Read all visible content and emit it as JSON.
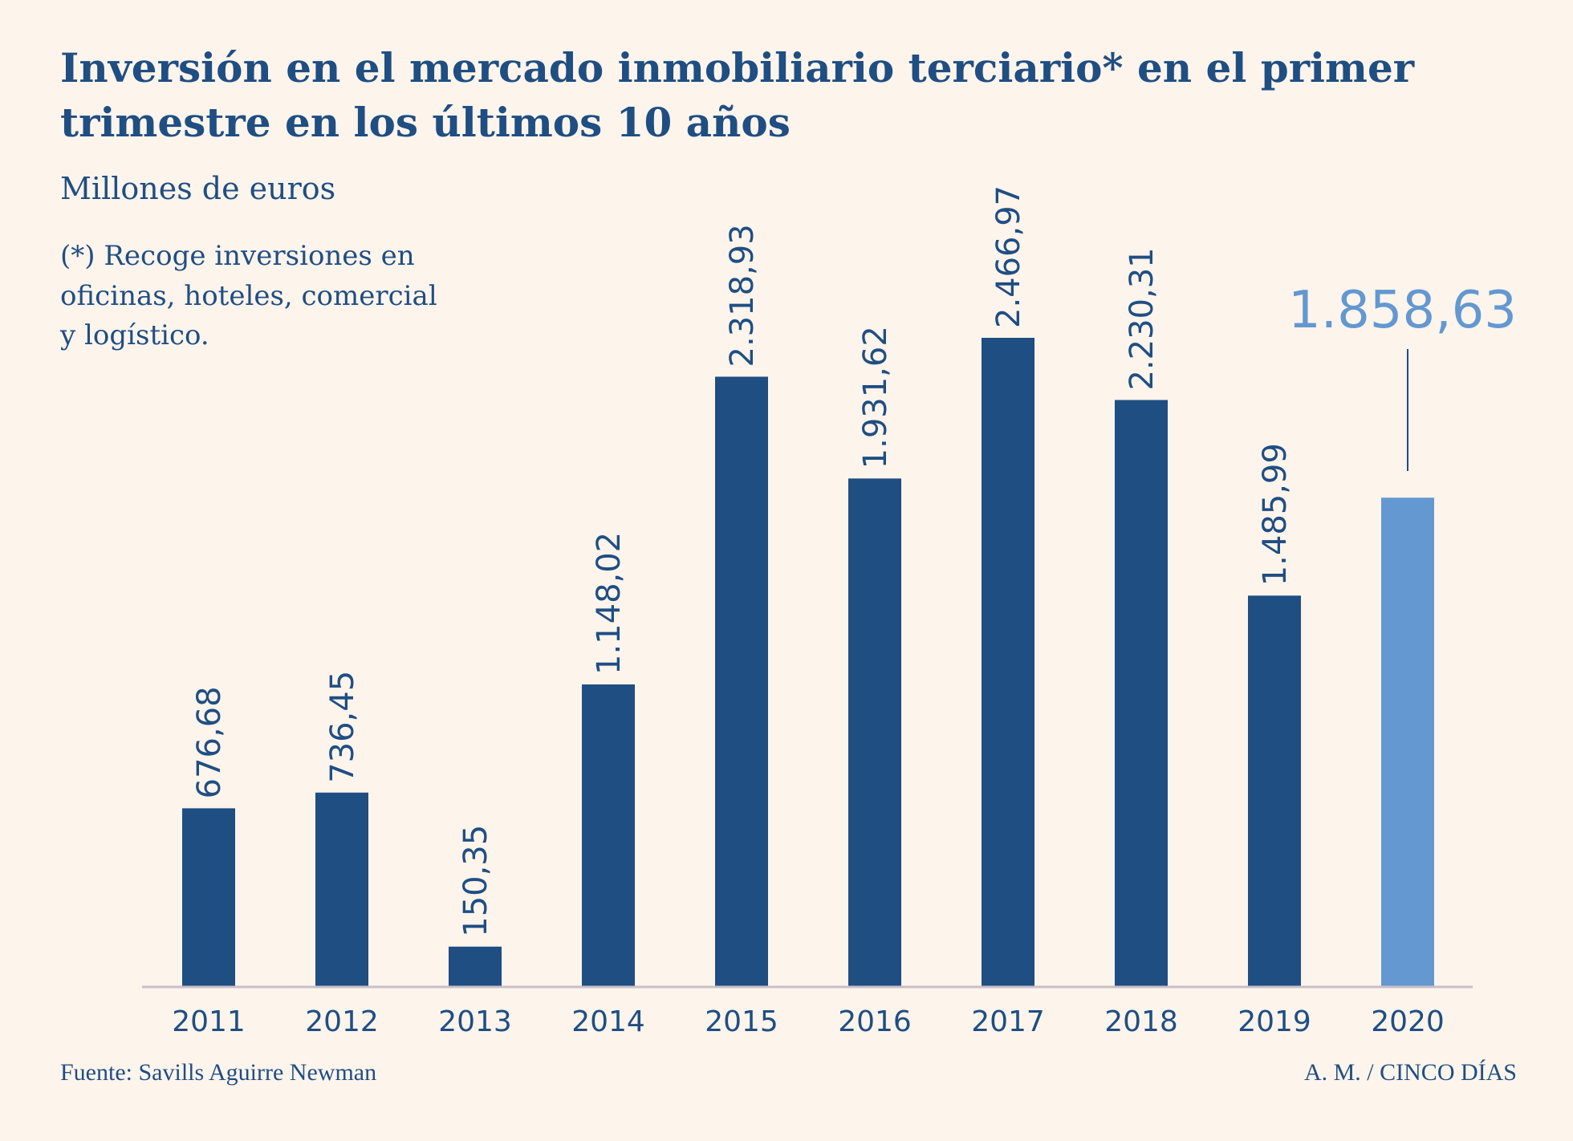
{
  "chart_data": {
    "type": "bar",
    "title": "Inversión en el mercado inmobiliario terciario* en el primer trimestre en los últimos 10 años",
    "title_lines": [
      "Inversión en el mercado inmobiliario terciario* en el primer",
      "trimestre en los últimos 10 años"
    ],
    "subtitle": "Millones de euros",
    "note_lines": [
      "(*) Recoge inversiones en",
      "oficinas, hoteles, comercial",
      "y logístico."
    ],
    "categories": [
      "2011",
      "2012",
      "2013",
      "2014",
      "2015",
      "2016",
      "2017",
      "2018",
      "2019",
      "2020"
    ],
    "values": [
      676.68,
      736.45,
      150.35,
      1148.02,
      2318.93,
      1931.62,
      2466.97,
      2230.31,
      1485.99,
      1858.63
    ],
    "labels": [
      "676,68",
      "736,45",
      "150,35",
      "1.148,02",
      "2.318,93",
      "1.931,62",
      "2.466,97",
      "2.230,31",
      "1.485,99",
      "1.858,63"
    ],
    "highlight_index": 9,
    "ylim": [
      0,
      2466.97
    ],
    "grid": false,
    "colors": {
      "bar": "#1f4e82",
      "highlight": "#6398d0",
      "background": "#fdf4ec",
      "axis": "#c9bfc9"
    }
  },
  "footer": {
    "source": "Fuente: Savills Aguirre Newman",
    "credit": "A. M. / CINCO DÍAS"
  }
}
